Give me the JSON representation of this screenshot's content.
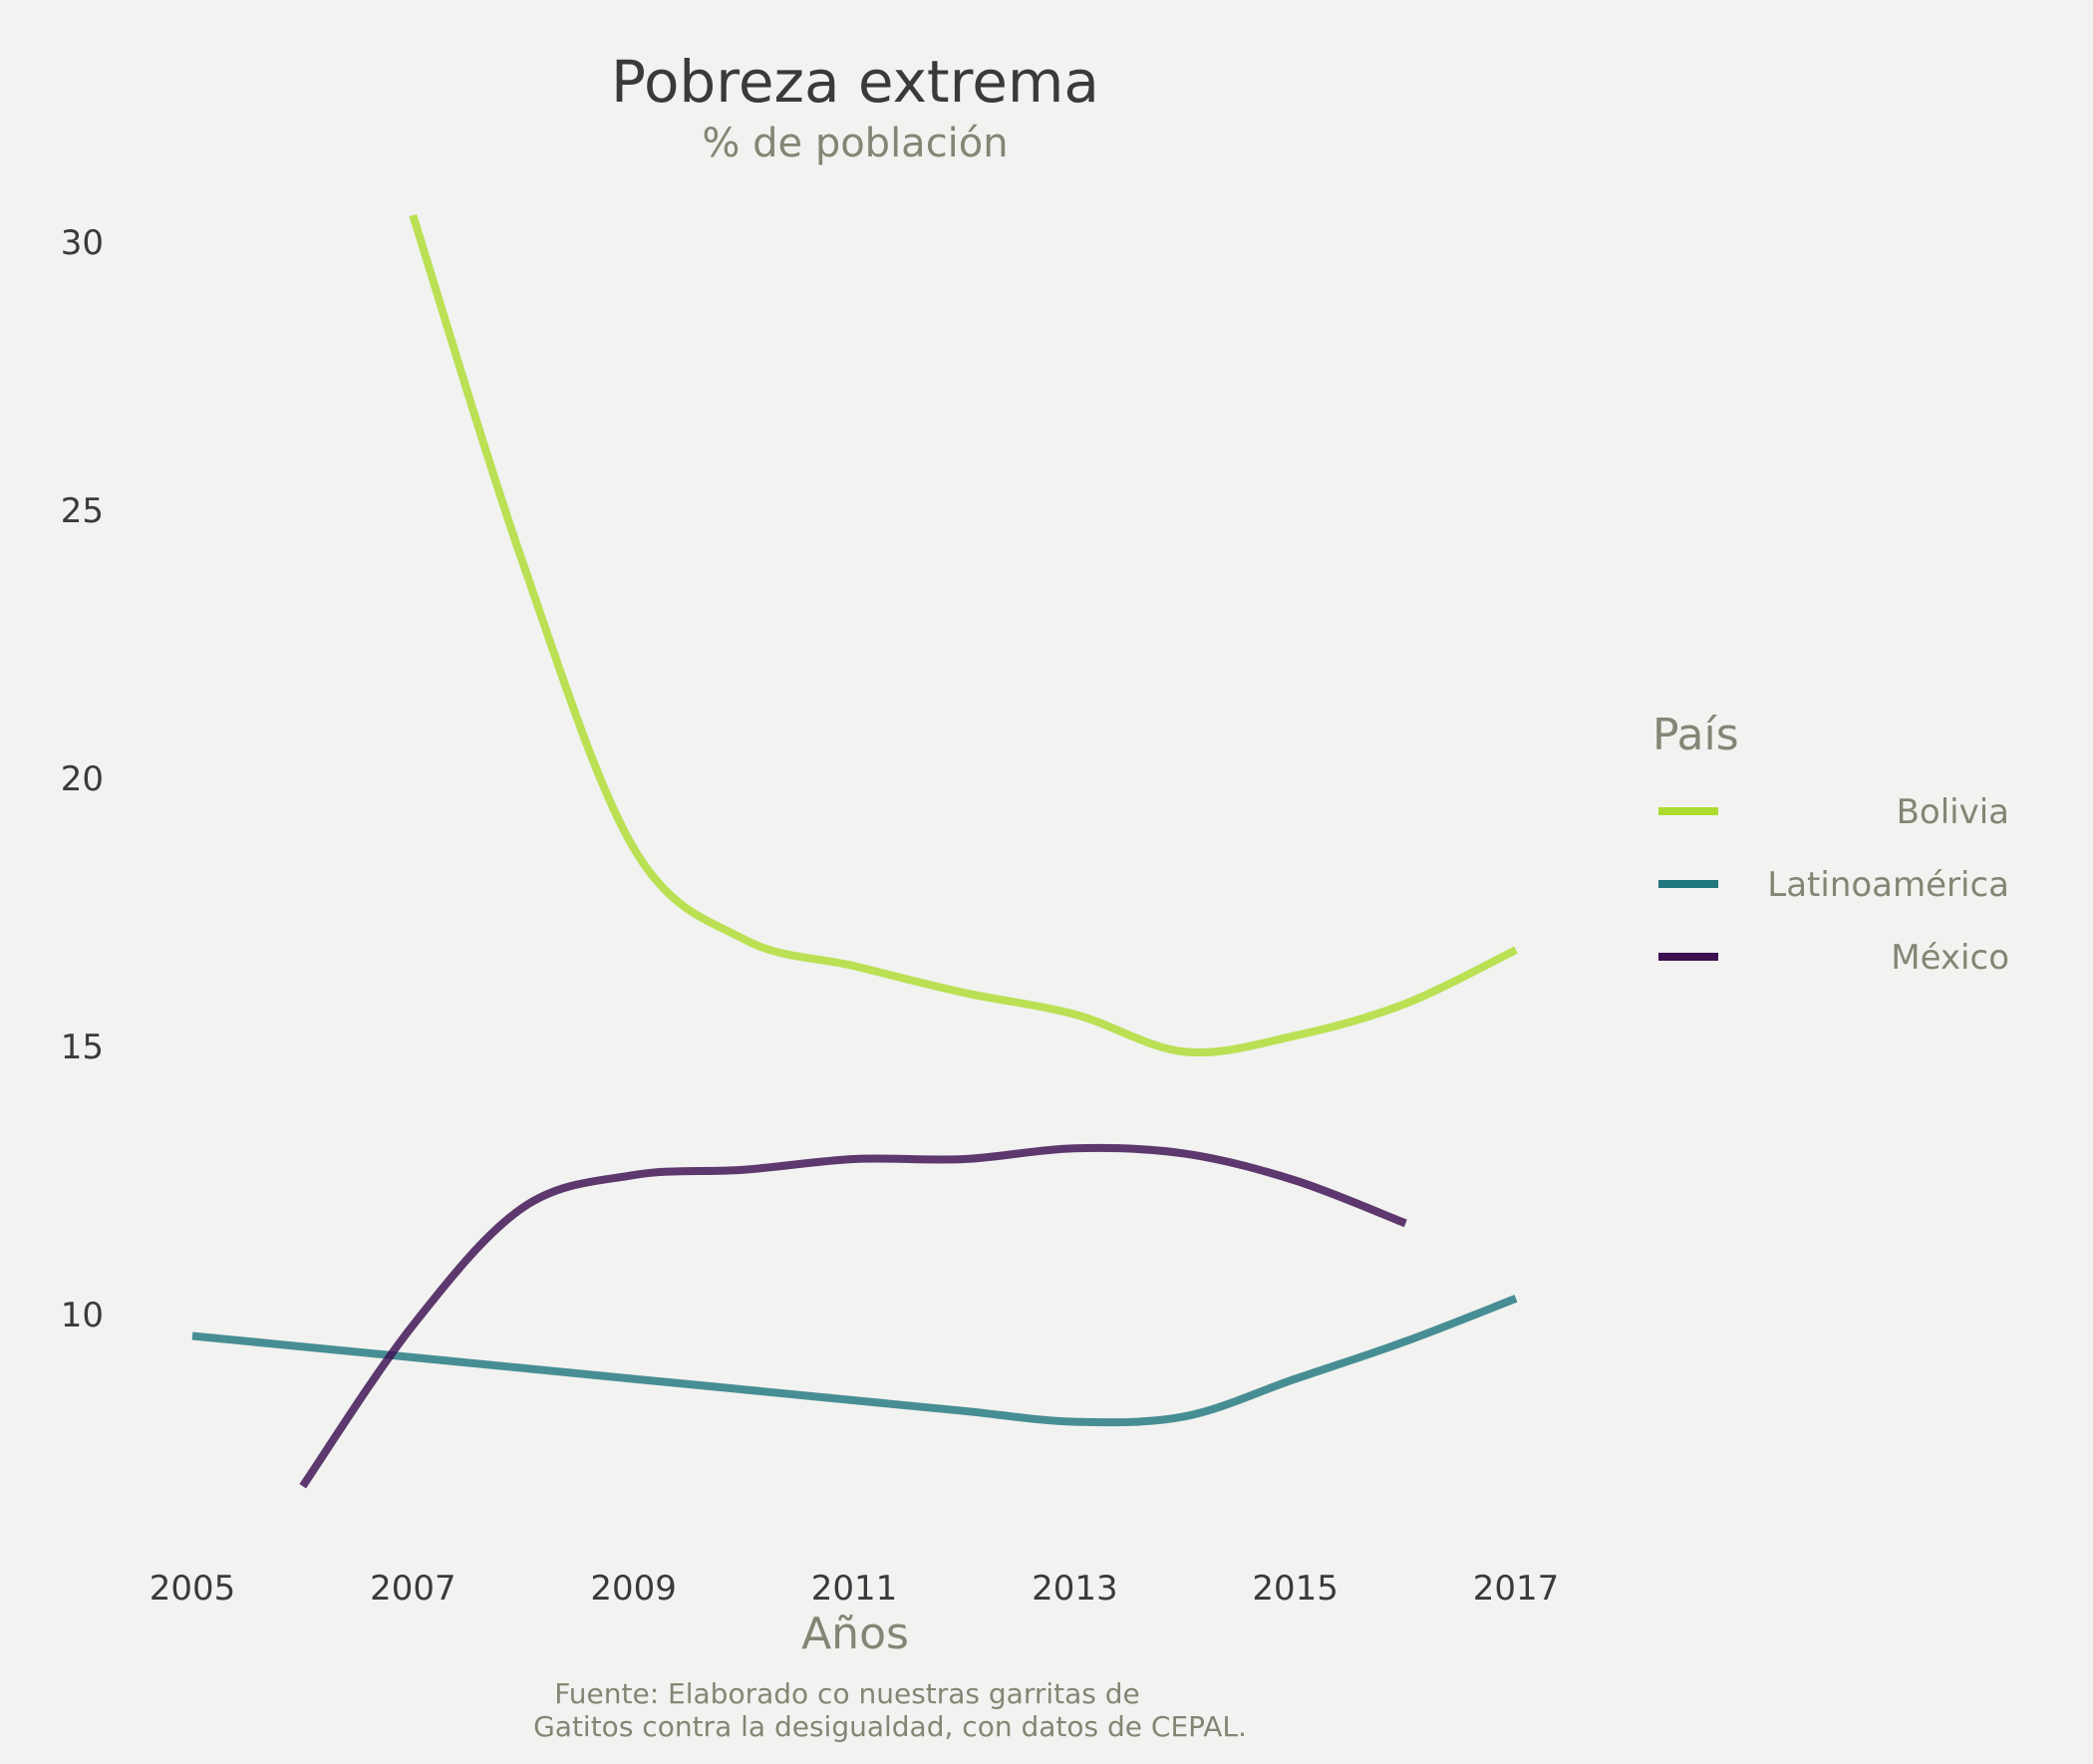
{
  "colors": {
    "background": "#f2f2f0",
    "bolivia": "#addc30",
    "latinoamerica": "#21777f",
    "mexico": "#3b0f50"
  },
  "chart_data": {
    "type": "line",
    "title": "Pobreza extrema",
    "subtitle": "% de población",
    "xlabel": "Años",
    "ylabel": "",
    "xlim": [
      2004.8,
      2017.2
    ],
    "ylim": [
      5.5,
      31.5
    ],
    "x_ticks": [
      "2005",
      "2007",
      "2009",
      "2011",
      "2013",
      "2015",
      "2017"
    ],
    "y_ticks": [
      "10",
      "15",
      "20",
      "25",
      "30"
    ],
    "legend": {
      "title": "País",
      "position": "right"
    },
    "caption": [
      "Fuente: Elaborado co nuestras garritas de",
      "Gatitos contra la desigualdad, con datos de CEPAL."
    ],
    "series": [
      {
        "name": "Bolivia",
        "color": "#addc30",
        "points": [
          [
            2007,
            30.5
          ],
          [
            2008,
            24.0
          ],
          [
            2009,
            18.7
          ],
          [
            2010,
            17.0
          ],
          [
            2011,
            16.5
          ],
          [
            2012,
            16.0
          ],
          [
            2013,
            15.6
          ],
          [
            2014,
            14.9
          ],
          [
            2015,
            15.2
          ],
          [
            2016,
            15.8
          ],
          [
            2017,
            16.8
          ]
        ]
      },
      {
        "name": "Latinoamérica",
        "color": "#21777f",
        "points": [
          [
            2005,
            9.6
          ],
          [
            2007,
            9.2
          ],
          [
            2009,
            8.8
          ],
          [
            2011,
            8.4
          ],
          [
            2012,
            8.2
          ],
          [
            2013,
            8.0
          ],
          [
            2014,
            8.1
          ],
          [
            2015,
            8.8
          ],
          [
            2016,
            9.5
          ],
          [
            2017,
            10.3
          ]
        ]
      },
      {
        "name": "México",
        "color": "#3b0f50",
        "points": [
          [
            2006,
            6.8
          ],
          [
            2007,
            9.8
          ],
          [
            2008,
            12.0
          ],
          [
            2009,
            12.6
          ],
          [
            2010,
            12.7
          ],
          [
            2011,
            12.9
          ],
          [
            2012,
            12.9
          ],
          [
            2013,
            13.1
          ],
          [
            2014,
            13.0
          ],
          [
            2015,
            12.5
          ],
          [
            2016,
            11.7
          ]
        ]
      }
    ]
  }
}
